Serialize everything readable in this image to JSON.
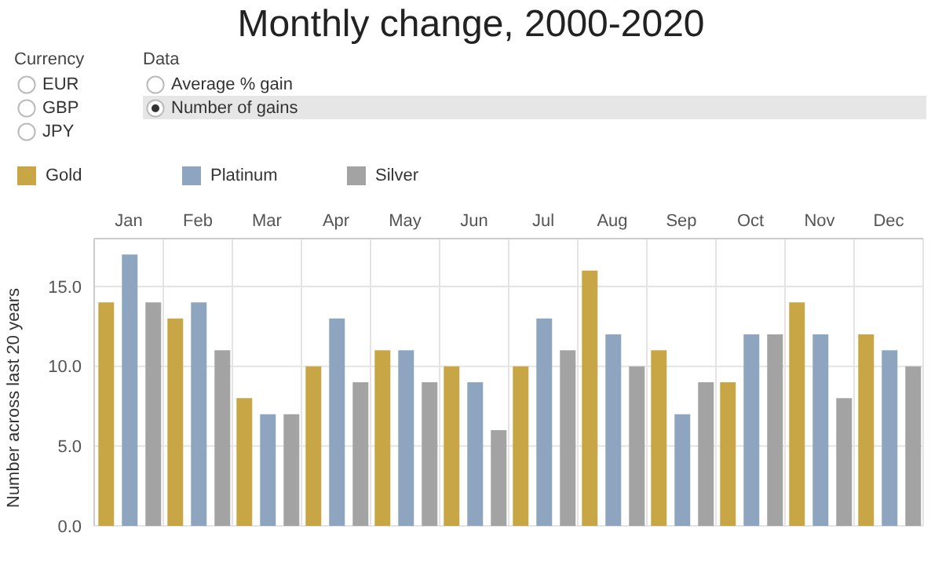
{
  "chart_data": {
    "type": "bar",
    "title": "Monthly change, 2000-2020",
    "ylabel": "Number across last 20 years",
    "categories": [
      "Jan",
      "Feb",
      "Mar",
      "Apr",
      "May",
      "Jun",
      "Jul",
      "Aug",
      "Sep",
      "Oct",
      "Nov",
      "Dec"
    ],
    "series": [
      {
        "name": "Gold",
        "color": "#c9a645",
        "values": [
          14,
          13,
          8,
          10,
          11,
          10,
          10,
          16,
          11,
          9,
          14,
          12
        ]
      },
      {
        "name": "Platinum",
        "color": "#8ea5bf",
        "values": [
          17,
          14,
          7,
          13,
          11,
          9,
          13,
          12,
          7,
          12,
          12,
          11
        ]
      },
      {
        "name": "Silver",
        "color": "#a3a3a3",
        "values": [
          14,
          11,
          7,
          9,
          9,
          6,
          11,
          10,
          9,
          12,
          8,
          10
        ]
      }
    ],
    "ylim": [
      0,
      18
    ],
    "yticks": [
      {
        "value": 0,
        "label": "0.0"
      },
      {
        "value": 5,
        "label": "5.0"
      },
      {
        "value": 10,
        "label": "10.0"
      },
      {
        "value": 15,
        "label": "15.0"
      }
    ],
    "grid": true,
    "legend": "top left",
    "annotations": [
      "Currency",
      "EUR",
      "GBP",
      "JPY",
      "Data",
      "Average % gain",
      "Number of gains"
    ]
  }
}
